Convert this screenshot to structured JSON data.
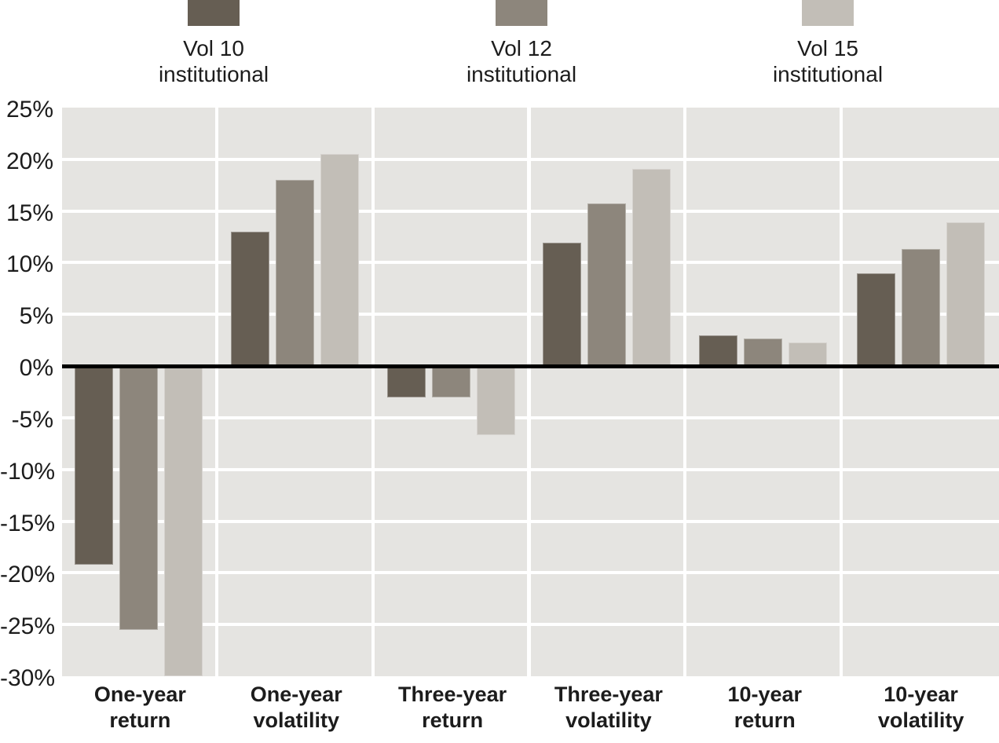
{
  "chart_data": {
    "type": "bar",
    "title": "",
    "categories": [
      [
        "One-year",
        "return"
      ],
      [
        "One-year",
        "volatility"
      ],
      [
        "Three-year",
        "return"
      ],
      [
        "Three-year",
        "volatility"
      ],
      [
        "10-year",
        "return"
      ],
      [
        "10-year",
        "volatility"
      ]
    ],
    "series": [
      {
        "name": "Vol 10 institutional",
        "legend_lines": [
          "Vol 10",
          "institutional"
        ],
        "color": "#665e53",
        "values": [
          -19.2,
          13.0,
          -3.0,
          11.9,
          3.0,
          9.0
        ]
      },
      {
        "name": "Vol 12 institutional",
        "legend_lines": [
          "Vol 12",
          "institutional"
        ],
        "color": "#8d867c",
        "values": [
          -25.5,
          18.0,
          -3.0,
          15.7,
          2.7,
          11.3
        ]
      },
      {
        "name": "Vol 15 institutional",
        "legend_lines": [
          "Vol 15",
          "institutional"
        ],
        "color": "#c2beb7",
        "values": [
          -30.0,
          20.5,
          -6.7,
          19.1,
          2.3,
          13.9
        ]
      }
    ],
    "ylim": [
      -30,
      25
    ],
    "ytick_step": 5,
    "ytick_labels": [
      "25%",
      "20%",
      "15%",
      "10%",
      "5%",
      "0%",
      "-5%",
      "-10%",
      "-15%",
      "-20%",
      "-25%",
      "-30%"
    ],
    "xlabel": "",
    "ylabel": "",
    "grid": true,
    "legend_position": "top",
    "colors": {
      "plot_background": "#e5e4e1",
      "gridline": "#ffffff",
      "zero_line": "#000000",
      "text": "#1c1c1c"
    }
  }
}
